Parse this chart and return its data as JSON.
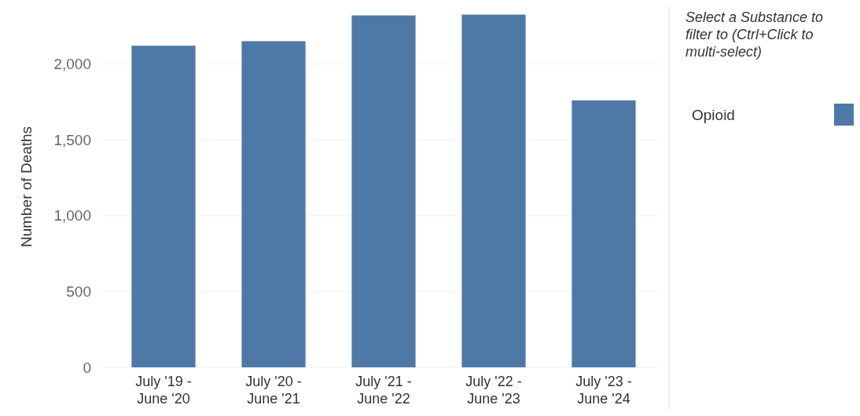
{
  "chart_data": {
    "type": "bar",
    "ylabel": "Number of Deaths",
    "legend_title": "Select a Substance to filter to (Ctrl+Click to multi-select)",
    "categories": [
      "July '19 - June '20",
      "July '20 - June '21",
      "July '21 - June '22",
      "July '22 - June '23",
      "July '23 - June '24"
    ],
    "series": [
      {
        "name": "Opioid",
        "color": "#4e79a7",
        "values": [
          2120,
          2150,
          2320,
          2325,
          1760
        ]
      }
    ],
    "ylim": [
      0,
      2380
    ],
    "yticks": [
      {
        "value": 0,
        "label": "0"
      },
      {
        "value": 500,
        "label": "500"
      },
      {
        "value": 1000,
        "label": "1,000"
      },
      {
        "value": 1500,
        "label": "1,500"
      },
      {
        "value": 2000,
        "label": "2,000"
      }
    ],
    "grid": "y",
    "legend": "right"
  }
}
